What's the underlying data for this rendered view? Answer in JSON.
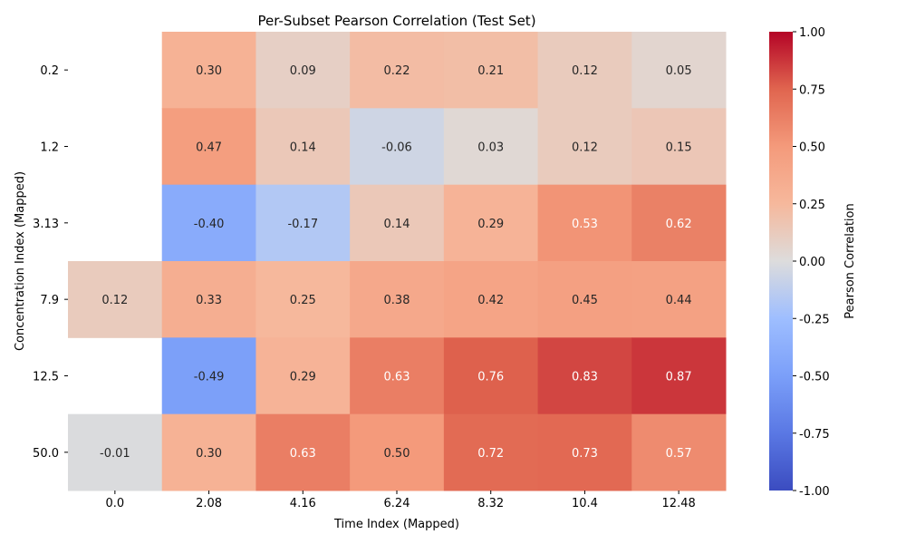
{
  "chart_data": {
    "type": "heatmap",
    "title": "Per-Subset Pearson Correlation (Test Set)",
    "xlabel": "Time Index (Mapped)",
    "ylabel": "Concentration Index (Mapped)",
    "x_categories": [
      "0.0",
      "2.08",
      "4.16",
      "6.24",
      "8.32",
      "10.4",
      "12.48"
    ],
    "y_categories": [
      "0.2",
      "1.2",
      "3.13",
      "7.9",
      "12.5",
      "50.0"
    ],
    "values": [
      [
        null,
        0.3,
        0.09,
        0.22,
        0.21,
        0.12,
        0.05
      ],
      [
        null,
        0.47,
        0.14,
        -0.06,
        0.03,
        0.12,
        0.15
      ],
      [
        null,
        -0.4,
        -0.17,
        0.14,
        0.29,
        0.53,
        0.62
      ],
      [
        0.12,
        0.33,
        0.25,
        0.38,
        0.42,
        0.45,
        0.44
      ],
      [
        null,
        -0.49,
        0.29,
        0.63,
        0.76,
        0.83,
        0.87
      ],
      [
        -0.01,
        0.3,
        0.63,
        0.5,
        0.72,
        0.73,
        0.57
      ]
    ],
    "colormap": "coolwarm",
    "vmin": -1.0,
    "vmax": 1.0,
    "colorbar": {
      "label": "Pearson Correlation",
      "ticks": [
        "-1.00",
        "-0.75",
        "-0.50",
        "-0.25",
        "0.00",
        "0.25",
        "0.50",
        "0.75",
        "1.00"
      ]
    },
    "annotations": true,
    "grid": false
  }
}
